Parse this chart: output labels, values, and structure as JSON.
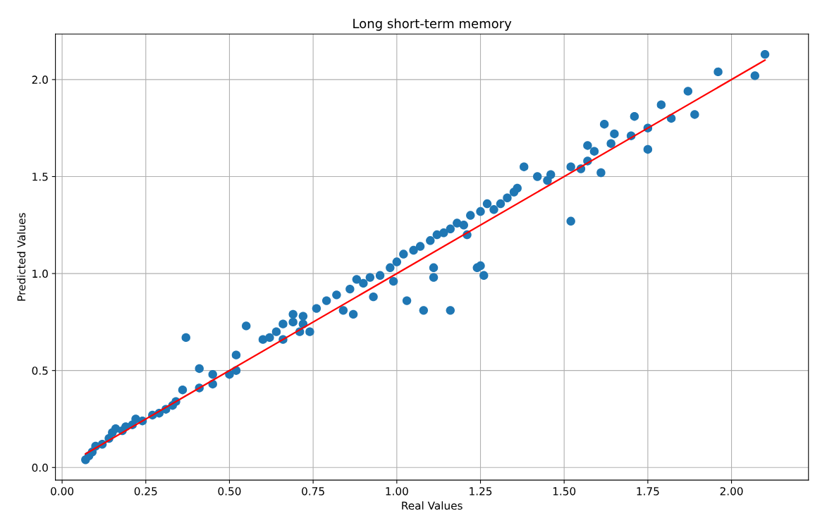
{
  "chart_data": {
    "type": "scatter",
    "title": "Long short-term memory",
    "xlabel": "Real Values",
    "ylabel": "Predicted Values",
    "xlim": [
      -0.02,
      2.23
    ],
    "ylim": [
      -0.065,
      2.235
    ],
    "xticks": [
      {
        "value": 0,
        "label": "0.00"
      },
      {
        "value": 0.25,
        "label": "0.25"
      },
      {
        "value": 0.5,
        "label": "0.50"
      },
      {
        "value": 0.75,
        "label": "0.75"
      },
      {
        "value": 1,
        "label": "1.00"
      },
      {
        "value": 1.25,
        "label": "1.25"
      },
      {
        "value": 1.5,
        "label": "1.50"
      },
      {
        "value": 1.75,
        "label": "1.75"
      },
      {
        "value": 2,
        "label": "2.00"
      }
    ],
    "yticks": [
      {
        "value": 0,
        "label": "0.0"
      },
      {
        "value": 0.5,
        "label": "0.5"
      },
      {
        "value": 1,
        "label": "1.0"
      },
      {
        "value": 1.5,
        "label": "1.5"
      },
      {
        "value": 2,
        "label": "2.0"
      }
    ],
    "grid": true,
    "series": [
      {
        "marker": "circle",
        "color": "#1f77b4",
        "x": [
          0.07,
          0.08,
          0.09,
          0.1,
          0.12,
          0.14,
          0.15,
          0.16,
          0.18,
          0.19,
          0.21,
          0.22,
          0.24,
          0.27,
          0.29,
          0.31,
          0.33,
          0.34,
          0.36,
          0.37,
          0.41,
          0.41,
          0.45,
          0.45,
          0.5,
          0.52,
          0.52,
          0.55,
          0.6,
          0.62,
          0.64,
          0.66,
          0.66,
          0.69,
          0.69,
          0.71,
          0.72,
          0.72,
          0.74,
          0.76,
          0.79,
          0.82,
          0.84,
          0.86,
          0.87,
          0.88,
          0.9,
          0.92,
          0.93,
          0.95,
          0.98,
          0.99,
          1.0,
          1.02,
          1.03,
          1.05,
          1.07,
          1.08,
          1.1,
          1.11,
          1.11,
          1.12,
          1.14,
          1.16,
          1.16,
          1.18,
          1.2,
          1.21,
          1.22,
          1.24,
          1.25,
          1.26,
          1.25,
          1.27,
          1.29,
          1.31,
          1.33,
          1.35,
          1.36,
          1.38,
          1.42,
          1.45,
          1.46,
          1.52,
          1.52,
          1.55,
          1.57,
          1.57,
          1.59,
          1.61,
          1.62,
          1.64,
          1.65,
          1.7,
          1.71,
          1.75,
          1.75,
          1.79,
          1.82,
          1.87,
          1.89,
          1.96,
          2.07,
          2.1
        ],
        "values": [
          0.04,
          0.06,
          0.08,
          0.11,
          0.12,
          0.15,
          0.18,
          0.2,
          0.19,
          0.21,
          0.22,
          0.25,
          0.24,
          0.27,
          0.28,
          0.3,
          0.32,
          0.34,
          0.4,
          0.67,
          0.41,
          0.51,
          0.43,
          0.48,
          0.48,
          0.5,
          0.58,
          0.73,
          0.66,
          0.67,
          0.7,
          0.66,
          0.74,
          0.75,
          0.79,
          0.7,
          0.74,
          0.78,
          0.7,
          0.82,
          0.86,
          0.89,
          0.81,
          0.92,
          0.79,
          0.97,
          0.95,
          0.98,
          0.88,
          0.99,
          1.03,
          0.96,
          1.06,
          1.1,
          0.86,
          1.12,
          1.14,
          0.81,
          1.17,
          1.03,
          0.98,
          1.2,
          1.21,
          0.81,
          1.23,
          1.26,
          1.25,
          1.2,
          1.3,
          1.03,
          1.04,
          0.99,
          1.32,
          1.36,
          1.33,
          1.36,
          1.39,
          1.42,
          1.44,
          1.55,
          1.5,
          1.48,
          1.51,
          1.27,
          1.55,
          1.54,
          1.58,
          1.66,
          1.63,
          1.52,
          1.77,
          1.67,
          1.72,
          1.71,
          1.81,
          1.64,
          1.75,
          1.87,
          1.8,
          1.94,
          1.82,
          2.04,
          2.02,
          2.13
        ]
      },
      {
        "type": "line",
        "color": "#ff0000",
        "x": [
          0.07,
          2.1
        ],
        "values": [
          0.07,
          2.1
        ]
      }
    ]
  }
}
